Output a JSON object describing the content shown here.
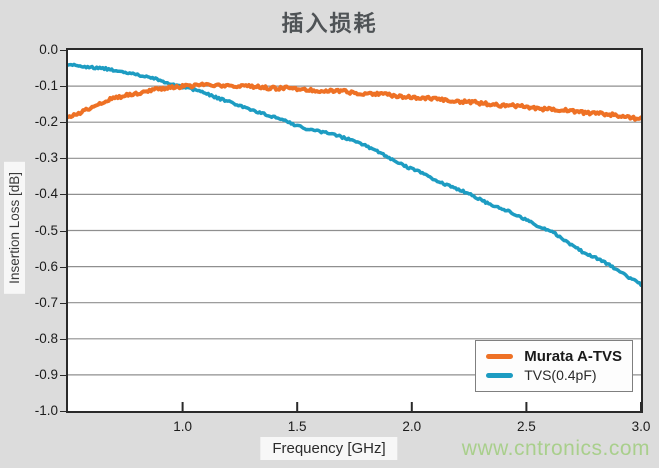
{
  "page": {
    "background": "#dcdcdc",
    "watermark": "www.cntronics.com",
    "watermark_color": "#a9cf8c"
  },
  "chart_data": {
    "type": "line",
    "title": "插入损耗",
    "xlabel": "Frequency [GHz]",
    "ylabel": "Insertion Loss [dB]",
    "xlim": [
      0.5,
      3.0
    ],
    "ylim": [
      -1.0,
      0.0
    ],
    "xtick_labels": [
      "1.0",
      "1.5",
      "2.0",
      "2.5",
      "3.0"
    ],
    "xticks": [
      1.0,
      1.5,
      2.0,
      2.5,
      3.0
    ],
    "ytick_labels": [
      "0.0",
      "-0.1",
      "-0.2",
      "-0.3",
      "-0.4",
      "-0.5",
      "-0.6",
      "-0.7",
      "-0.8",
      "-0.9",
      "-1.0"
    ],
    "yticks": [
      0.0,
      -0.1,
      -0.2,
      -0.3,
      -0.4,
      -0.5,
      -0.6,
      -0.7,
      -0.8,
      -0.9,
      -1.0
    ],
    "grid": "horizontal",
    "grid_color": "#8f8f8f",
    "frame_color": "#2a2a2a",
    "legend_position": "lower right",
    "x": [
      0.5,
      0.625,
      0.75,
      0.875,
      1.0,
      1.125,
      1.25,
      1.375,
      1.5,
      1.625,
      1.75,
      1.875,
      2.0,
      2.125,
      2.25,
      2.375,
      2.5,
      2.625,
      2.75,
      2.875,
      3.0
    ],
    "series": [
      {
        "name": "Murata A-TVS",
        "color": "#ee7125",
        "stroke_width": 4,
        "noise_amp": 0.0045,
        "values": [
          -0.19,
          -0.15,
          -0.125,
          -0.11,
          -0.1,
          -0.098,
          -0.1,
          -0.104,
          -0.108,
          -0.112,
          -0.118,
          -0.124,
          -0.13,
          -0.138,
          -0.145,
          -0.152,
          -0.158,
          -0.165,
          -0.172,
          -0.18,
          -0.19
        ]
      },
      {
        "name": "TVS(0.4pF)",
        "color": "#1d9cc2",
        "stroke_width": 3.5,
        "noise_amp": 0.003,
        "values": [
          -0.04,
          -0.05,
          -0.06,
          -0.08,
          -0.103,
          -0.125,
          -0.155,
          -0.18,
          -0.21,
          -0.23,
          -0.25,
          -0.29,
          -0.33,
          -0.365,
          -0.4,
          -0.435,
          -0.47,
          -0.51,
          -0.56,
          -0.6,
          -0.65
        ]
      }
    ]
  }
}
